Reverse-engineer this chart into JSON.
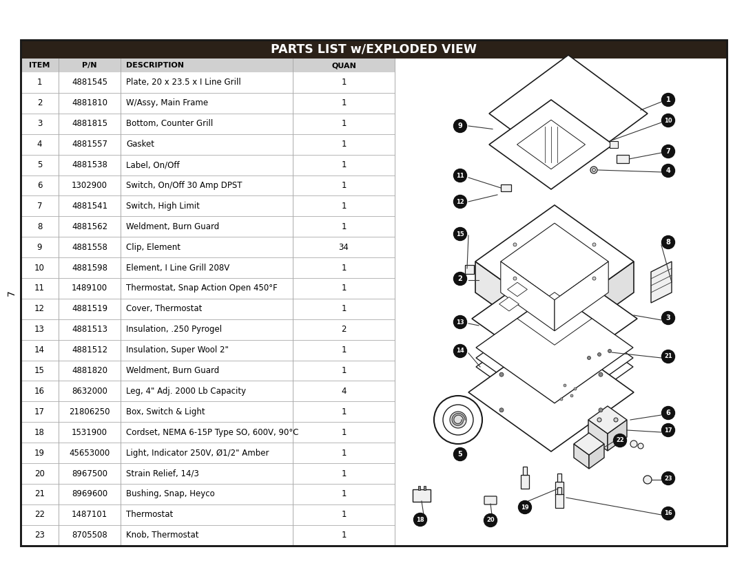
{
  "title": "PARTS LIST w/EXPLODED VIEW",
  "title_bg": "#2b2118",
  "title_fg": "#ffffff",
  "header_bg": "#d0d0d0",
  "header_fg": "#000000",
  "col_headers": [
    "ITEM",
    "P/N",
    "DESCRIPTION",
    "QUAN"
  ],
  "rows": [
    {
      "item": "1",
      "pn": "4881545",
      "desc": "Plate, 20 x 23.5 x I Line Grill",
      "quan": "1"
    },
    {
      "item": "2",
      "pn": "4881810",
      "desc": "W/Assy, Main Frame",
      "quan": "1"
    },
    {
      "item": "3",
      "pn": "4881815",
      "desc": "Bottom, Counter Grill",
      "quan": "1"
    },
    {
      "item": "4",
      "pn": "4881557",
      "desc": "Gasket",
      "quan": "1"
    },
    {
      "item": "5",
      "pn": "4881538",
      "desc": "Label, On/Off",
      "quan": "1"
    },
    {
      "item": "6",
      "pn": "1302900",
      "desc": "Switch, On/Off 30 Amp DPST",
      "quan": "1"
    },
    {
      "item": "7",
      "pn": "4881541",
      "desc": "Switch, High Limit",
      "quan": "1"
    },
    {
      "item": "8",
      "pn": "4881562",
      "desc": "Weldment, Burn Guard",
      "quan": "1"
    },
    {
      "item": "9",
      "pn": "4881558",
      "desc": "Clip, Element",
      "quan": "34"
    },
    {
      "item": "10",
      "pn": "4881598",
      "desc": "Element, I Line Grill 208V",
      "quan": "1"
    },
    {
      "item": "11",
      "pn": "1489100",
      "desc": "Thermostat, Snap Action Open 450°F",
      "quan": "1"
    },
    {
      "item": "12",
      "pn": "4881519",
      "desc": "Cover, Thermostat",
      "quan": "1"
    },
    {
      "item": "13",
      "pn": "4881513",
      "desc": "Insulation, .250 Pyrogel",
      "quan": "2"
    },
    {
      "item": "14",
      "pn": "4881512",
      "desc": "Insulation, Super Wool 2\"",
      "quan": "1"
    },
    {
      "item": "15",
      "pn": "4881820",
      "desc": "Weldment, Burn Guard",
      "quan": "1"
    },
    {
      "item": "16",
      "pn": "8632000",
      "desc": "Leg, 4\" Adj. 2000 Lb Capacity",
      "quan": "4"
    },
    {
      "item": "17",
      "pn": "21806250",
      "desc": "Box, Switch & Light",
      "quan": "1"
    },
    {
      "item": "18",
      "pn": "1531900",
      "desc": "Cordset, NEMA 6-15P Type SO, 600V, 90°C",
      "quan": "1"
    },
    {
      "item": "19",
      "pn": "45653000",
      "desc": "Light, Indicator 250V, Ø1/2\" Amber",
      "quan": "1"
    },
    {
      "item": "20",
      "pn": "8967500",
      "desc": "Strain Relief, 14/3",
      "quan": "1"
    },
    {
      "item": "21",
      "pn": "8969600",
      "desc": "Bushing, Snap, Heyco",
      "quan": "1"
    },
    {
      "item": "22",
      "pn": "1487101",
      "desc": "Thermostat",
      "quan": "1"
    },
    {
      "item": "23",
      "pn": "8705508",
      "desc": "Knob, Thermostat",
      "quan": "1"
    }
  ],
  "page_label": "7",
  "title_bar_color": "#2b2118",
  "outer_border_color": "#1a1a1a",
  "row_line_color": "#aaaaaa",
  "col_line_color": "#aaaaaa",
  "bg_color": "#ffffff"
}
